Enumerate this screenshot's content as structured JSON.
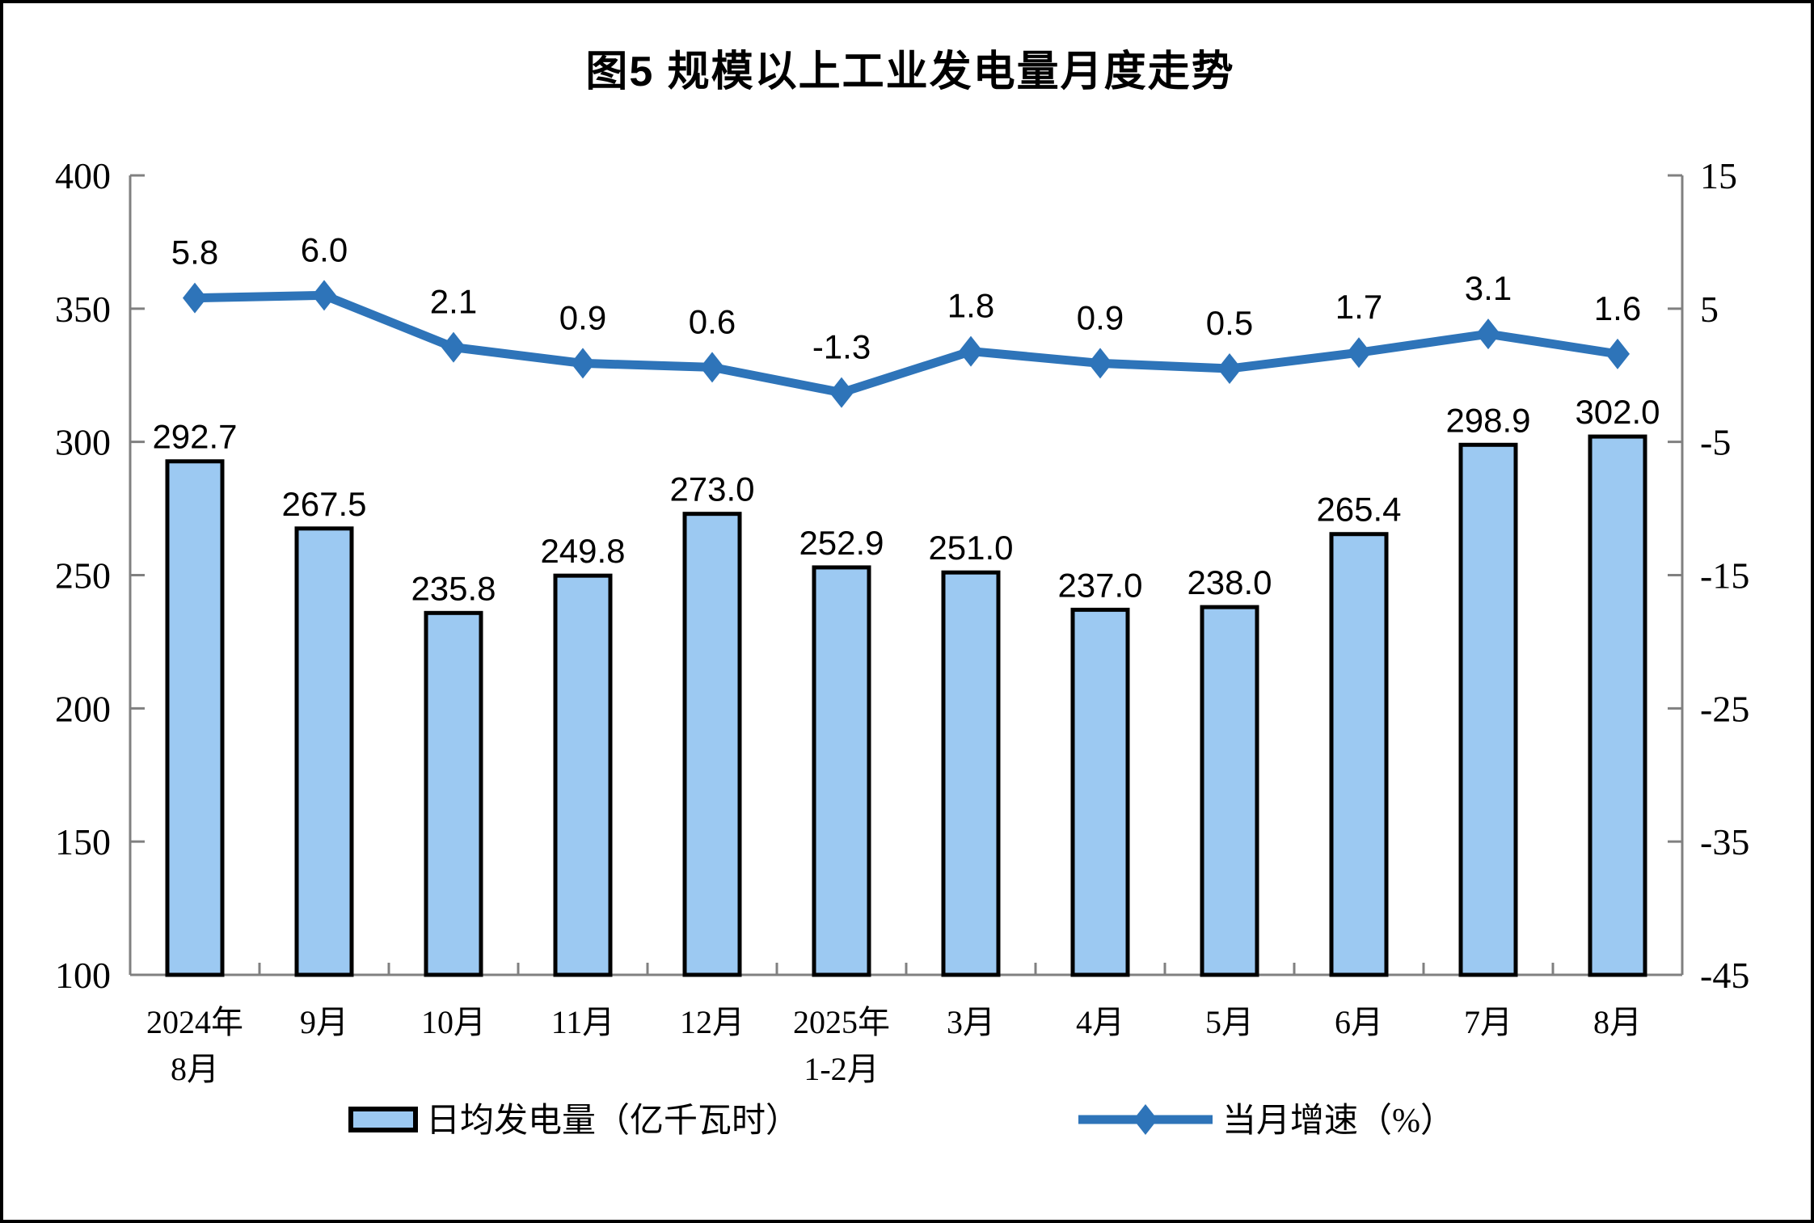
{
  "frame": {
    "background": "#FFFFFF",
    "border_color": "#000000"
  },
  "chart_data": {
    "type": "bar",
    "subtype": "bar-line-combo",
    "title": "图5  规模以上工业发电量月度走势",
    "grid": false,
    "legend_position": "bottom",
    "categories": [
      [
        "2024年",
        "8月"
      ],
      [
        "9月"
      ],
      [
        "10月"
      ],
      [
        "11月"
      ],
      [
        "12月"
      ],
      [
        "2025年",
        "1-2月"
      ],
      [
        "3月"
      ],
      [
        "4月"
      ],
      [
        "5月"
      ],
      [
        "6月"
      ],
      [
        "7月"
      ],
      [
        "8月"
      ]
    ],
    "series": [
      {
        "name": "日均发电量（亿千瓦时）",
        "kind": "bar",
        "axis": "left",
        "values": [
          292.7,
          267.5,
          235.8,
          249.8,
          273.0,
          252.9,
          251.0,
          237.0,
          238.0,
          265.4,
          298.9,
          302.0
        ]
      },
      {
        "name": "当月增速（%）",
        "kind": "line",
        "axis": "right",
        "values": [
          5.8,
          6.0,
          2.1,
          0.9,
          0.6,
          -1.3,
          1.8,
          0.9,
          0.5,
          1.7,
          3.1,
          1.6
        ]
      }
    ],
    "left_axis": {
      "min": 100,
      "max": 400,
      "step": 50,
      "ticks": [
        400,
        350,
        300,
        250,
        200,
        150,
        100
      ]
    },
    "right_axis": {
      "min": -45,
      "max": 15,
      "step": 10,
      "ticks": [
        15,
        5,
        -5,
        -15,
        -25,
        -35,
        -45
      ]
    },
    "colors": {
      "bar_fill": "#9CC9F2",
      "bar_border": "#000000",
      "line": "#2E74B9",
      "axis": "#808080",
      "text": "#000000"
    }
  }
}
